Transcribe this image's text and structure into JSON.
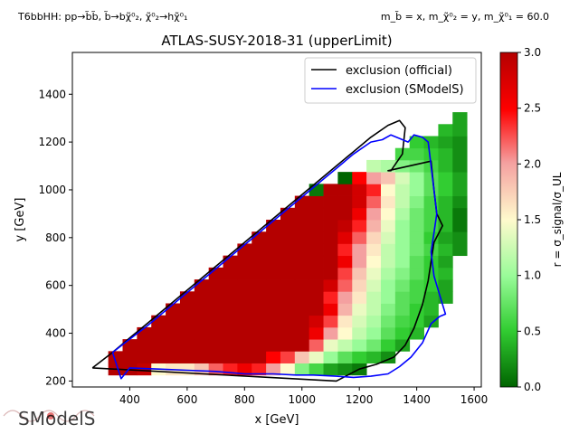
{
  "header": {
    "left_label": "T6bbHH: pp→b̃b̃, b̃→bχ̃⁰₂, χ̃⁰₂→hχ̃⁰₁",
    "right_label": "m_b̃ = x, m_χ̃⁰₂ = y, m_χ̃⁰₁ = 60.0"
  },
  "logo": {
    "text": "SModelS"
  },
  "chart_data": {
    "type": "heatmap",
    "title": "ATLAS-SUSY-2018-31 (upperLimit)",
    "xlabel": "x [GeV]",
    "ylabel": "y [GeV]",
    "xlim": [
      200,
      1625
    ],
    "ylim": [
      175,
      1575
    ],
    "xticks": [
      400,
      600,
      800,
      1000,
      1200,
      1400,
      1600
    ],
    "yticks": [
      200,
      400,
      600,
      800,
      1000,
      1200,
      1400
    ],
    "colorbar": {
      "label": "r = σ_signal/σ_UL",
      "range": [
        0.0,
        3.0
      ],
      "ticks": [
        0.0,
        0.5,
        1.0,
        1.5,
        2.0,
        2.5,
        3.0
      ],
      "colors": [
        "#006400",
        "#32cd32",
        "#98fb98",
        "#fffacd",
        "#f4a0a0",
        "#ff0000",
        "#b40000"
      ]
    },
    "grid": {
      "cell_x": 50,
      "cell_y": 50,
      "x_start": 325,
      "y_start": 225,
      "note": "rows listed from y=250 upward; values are r per cell, null = no data",
      "rows": [
        [
          3,
          3,
          2.9,
          1.5,
          1.6,
          1.6,
          1.8,
          2.2,
          2.4,
          2.6,
          2.4,
          2.0,
          1.5,
          0.9,
          0.6,
          0.3,
          0.2,
          0.1,
          null,
          null,
          null,
          null,
          null,
          null,
          null,
          null,
          null,
          null
        ],
        [
          3,
          3,
          3,
          3,
          3,
          3,
          3,
          3,
          3,
          3,
          3,
          2.5,
          2.3,
          1.8,
          1.4,
          1.0,
          0.7,
          0.5,
          0.4,
          0.2,
          null,
          null,
          null,
          null,
          null,
          null,
          null,
          null
        ],
        [
          null,
          3,
          3,
          3,
          3,
          3,
          3,
          3,
          3,
          3,
          3,
          3,
          3,
          3,
          2.2,
          1.4,
          1.2,
          1.0,
          0.8,
          0.5,
          0.3,
          null,
          null,
          null,
          null,
          null,
          null,
          null
        ],
        [
          null,
          null,
          3,
          3,
          3,
          3,
          3,
          3,
          3,
          3,
          3,
          3,
          3,
          3,
          2.6,
          2.0,
          1.5,
          1.2,
          1.0,
          0.7,
          0.5,
          0.4,
          null,
          null,
          null,
          null,
          null,
          null
        ],
        [
          null,
          null,
          null,
          3,
          3,
          3,
          3,
          3,
          3,
          3,
          3,
          3,
          3,
          3,
          2.8,
          2.3,
          1.6,
          1.3,
          1.1,
          0.8,
          0.6,
          0.5,
          0.3,
          null,
          null,
          null,
          null,
          null
        ],
        [
          null,
          null,
          null,
          null,
          3,
          3,
          3,
          3,
          3,
          3,
          3,
          3,
          3,
          3,
          3,
          2.6,
          1.9,
          1.4,
          1.2,
          0.9,
          0.7,
          0.5,
          0.4,
          null,
          null,
          null,
          null,
          null
        ],
        [
          null,
          null,
          null,
          null,
          null,
          3,
          3,
          3,
          3,
          3,
          3,
          3,
          3,
          3,
          3,
          2.4,
          2.0,
          1.6,
          1.2,
          1.0,
          0.7,
          0.6,
          0.4,
          0.3,
          null,
          null,
          null,
          null
        ],
        [
          null,
          null,
          null,
          null,
          null,
          null,
          3,
          3,
          3,
          3,
          3,
          3,
          3,
          3,
          3,
          2.8,
          2.2,
          1.7,
          1.3,
          1.0,
          0.8,
          0.6,
          0.5,
          0.3,
          null,
          null,
          null,
          null
        ],
        [
          null,
          null,
          null,
          null,
          null,
          null,
          null,
          3,
          3,
          3,
          3,
          3,
          3,
          3,
          3,
          3,
          2.3,
          1.8,
          1.4,
          1.1,
          0.9,
          0.7,
          0.5,
          0.4,
          null,
          null,
          null,
          null
        ],
        [
          null,
          null,
          null,
          null,
          null,
          null,
          null,
          null,
          3,
          3,
          3,
          3,
          3,
          3,
          3,
          3,
          2.6,
          2.0,
          1.5,
          1.2,
          1.0,
          0.7,
          0.5,
          0.3,
          null,
          null,
          null,
          null
        ],
        [
          null,
          null,
          null,
          null,
          null,
          null,
          null,
          null,
          null,
          3,
          3,
          3,
          3,
          3,
          3,
          3,
          2.4,
          2.0,
          1.6,
          1.2,
          1.0,
          0.8,
          0.6,
          0.4,
          0.2,
          null,
          null,
          null
        ],
        [
          null,
          null,
          null,
          null,
          null,
          null,
          null,
          null,
          null,
          null,
          3,
          3,
          3,
          3,
          3,
          3,
          2.7,
          2.2,
          1.7,
          1.3,
          1.0,
          0.8,
          0.5,
          0.3,
          0.2,
          null,
          null,
          null
        ],
        [
          null,
          null,
          null,
          null,
          null,
          null,
          null,
          null,
          null,
          null,
          null,
          3,
          3,
          3,
          3,
          3,
          2.9,
          2.4,
          1.9,
          1.4,
          1.0,
          0.8,
          0.6,
          0.4,
          0.1,
          null,
          null,
          null
        ],
        [
          null,
          null,
          null,
          null,
          null,
          null,
          null,
          null,
          null,
          null,
          null,
          null,
          3,
          3,
          3,
          3,
          3,
          2.6,
          2.0,
          1.5,
          1.1,
          0.8,
          0.6,
          0.4,
          0.1,
          null,
          null,
          null
        ],
        [
          null,
          null,
          null,
          null,
          null,
          null,
          null,
          null,
          null,
          null,
          null,
          null,
          null,
          3,
          3,
          3,
          3,
          2.8,
          2.2,
          1.6,
          1.2,
          0.9,
          0.6,
          0.4,
          0.2,
          null,
          null,
          null
        ],
        [
          null,
          null,
          null,
          null,
          null,
          null,
          null,
          null,
          null,
          null,
          null,
          null,
          null,
          null,
          0.1,
          3,
          3,
          2.8,
          2.4,
          1.5,
          1.2,
          1.0,
          0.7,
          0.5,
          0.3,
          null,
          null,
          null
        ],
        [
          null,
          null,
          null,
          null,
          null,
          null,
          null,
          null,
          null,
          null,
          null,
          null,
          null,
          null,
          null,
          null,
          0.0,
          2.5,
          2.0,
          1.8,
          1.3,
          1.0,
          0.7,
          0.5,
          0.3,
          null,
          null,
          null
        ],
        [
          null,
          null,
          null,
          null,
          null,
          null,
          null,
          null,
          null,
          null,
          null,
          null,
          null,
          null,
          null,
          null,
          null,
          null,
          1.2,
          1.1,
          0.9,
          0.8,
          0.6,
          0.4,
          0.2,
          null,
          null,
          null
        ],
        [
          null,
          null,
          null,
          null,
          null,
          null,
          null,
          null,
          null,
          null,
          null,
          null,
          null,
          null,
          null,
          null,
          null,
          null,
          null,
          null,
          0.6,
          0.6,
          0.5,
          0.4,
          0.2,
          null,
          null,
          null
        ],
        [
          null,
          null,
          null,
          null,
          null,
          null,
          null,
          null,
          null,
          null,
          null,
          null,
          null,
          null,
          null,
          null,
          null,
          null,
          null,
          null,
          null,
          0.5,
          0.4,
          0.3,
          0.2,
          null,
          null,
          null
        ],
        [
          null,
          null,
          null,
          null,
          null,
          null,
          null,
          null,
          null,
          null,
          null,
          null,
          null,
          null,
          null,
          null,
          null,
          null,
          null,
          null,
          null,
          null,
          null,
          0.4,
          0.3,
          null,
          null,
          null
        ],
        [
          null,
          null,
          null,
          null,
          null,
          null,
          null,
          null,
          null,
          null,
          null,
          null,
          null,
          null,
          null,
          null,
          null,
          null,
          null,
          null,
          null,
          null,
          null,
          null,
          0.3,
          null,
          null,
          null
        ]
      ]
    },
    "series": [
      {
        "name": "exclusion (official)",
        "color": "#000000",
        "x": [
          270,
          340,
          400,
          460,
          520,
          580,
          640,
          700,
          760,
          820,
          880,
          940,
          1000,
          1060,
          1120,
          1180,
          1240,
          1300,
          1340,
          1360,
          1350,
          1310,
          1300,
          1450,
          1460,
          1470,
          1490,
          1460,
          1450,
          1440,
          1420,
          1390,
          1360,
          1320,
          1260,
          1200,
          1120,
          270
        ],
        "y": [
          255,
          320,
          380,
          440,
          500,
          560,
          620,
          680,
          740,
          800,
          860,
          920,
          980,
          1040,
          1100,
          1160,
          1220,
          1270,
          1290,
          1260,
          1150,
          1080,
          1080,
          1120,
          1000,
          900,
          850,
          780,
          700,
          620,
          520,
          420,
          350,
          300,
          270,
          250,
          200,
          255
        ]
      },
      {
        "name": "exclusion (SModelS)",
        "color": "#0000ff",
        "x": [
          340,
          400,
          460,
          520,
          580,
          640,
          700,
          760,
          820,
          880,
          940,
          1000,
          1060,
          1120,
          1180,
          1240,
          1280,
          1310,
          1340,
          1370,
          1390,
          1420,
          1440,
          1460,
          1470,
          1460,
          1450,
          1460,
          1480,
          1500,
          1480,
          1450,
          1420,
          1380,
          1340,
          1300,
          1240,
          1180,
          1120,
          1040,
          980,
          900,
          800,
          700,
          600,
          500,
          400,
          370,
          340
        ],
        "y": [
          320,
          375,
          430,
          490,
          550,
          610,
          670,
          730,
          790,
          850,
          910,
          970,
          1030,
          1090,
          1150,
          1200,
          1210,
          1230,
          1215,
          1200,
          1230,
          1220,
          1200,
          1000,
          900,
          820,
          740,
          640,
          560,
          480,
          470,
          440,
          360,
          300,
          260,
          230,
          220,
          215,
          220,
          225,
          225,
          230,
          230,
          240,
          245,
          250,
          255,
          210,
          320
        ]
      }
    ],
    "legend": {
      "placement": "upper right"
    }
  }
}
